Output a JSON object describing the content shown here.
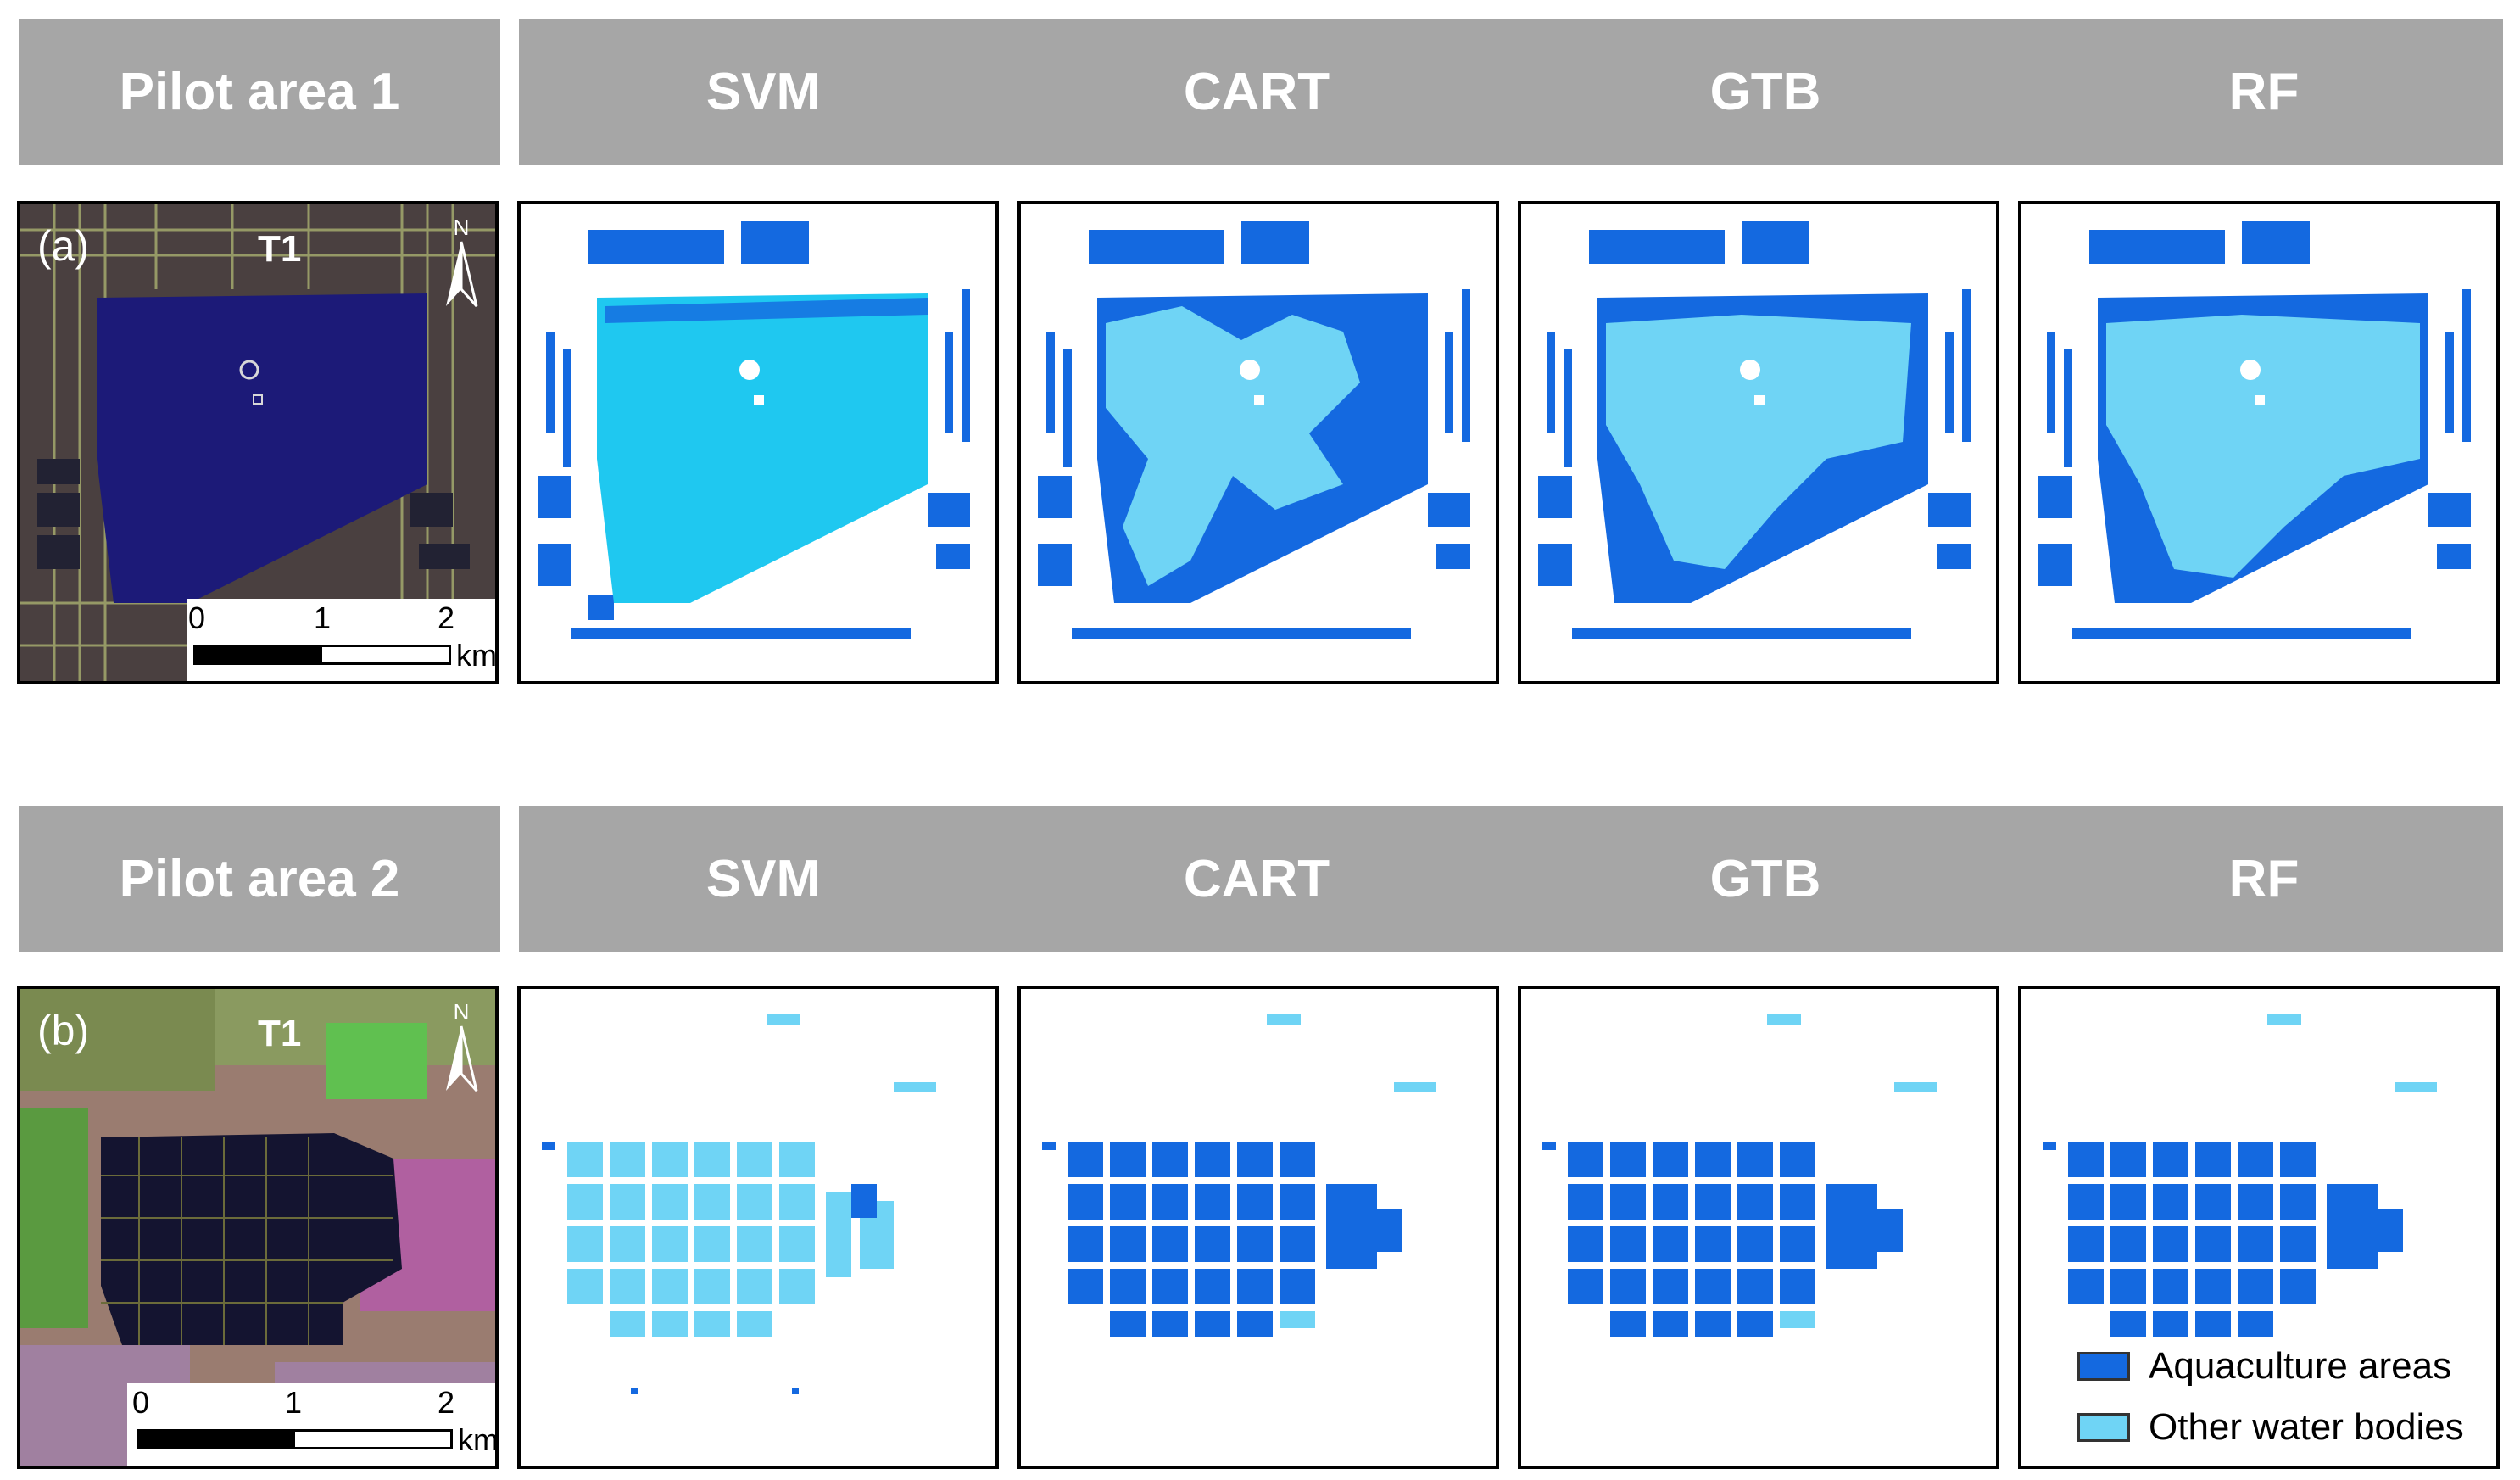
{
  "rows": [
    {
      "pilot_label": "Pilot area 1",
      "panel_label": "(a)",
      "site_label": "T1",
      "methods": [
        "SVM",
        "CART",
        "GTB",
        "RF"
      ]
    },
    {
      "pilot_label": "Pilot area 2",
      "panel_label": "(b)",
      "site_label": "T1",
      "methods": [
        "SVM",
        "CART",
        "GTB",
        "RF"
      ]
    }
  ],
  "scale_bar": {
    "ticks": [
      "0",
      "1",
      "2"
    ],
    "unit": "km"
  },
  "north_label": "N",
  "legend": {
    "items": [
      {
        "label": "Aquaculture areas",
        "color": "#1469e0"
      },
      {
        "label": "Other water bodies",
        "color": "#6fd4f5"
      }
    ]
  },
  "colors": {
    "header_bg": "#a6a6a6",
    "aquaculture": "#1469e0",
    "other_water": "#6fd4f5",
    "svm_lake": "#1fc8f0"
  }
}
